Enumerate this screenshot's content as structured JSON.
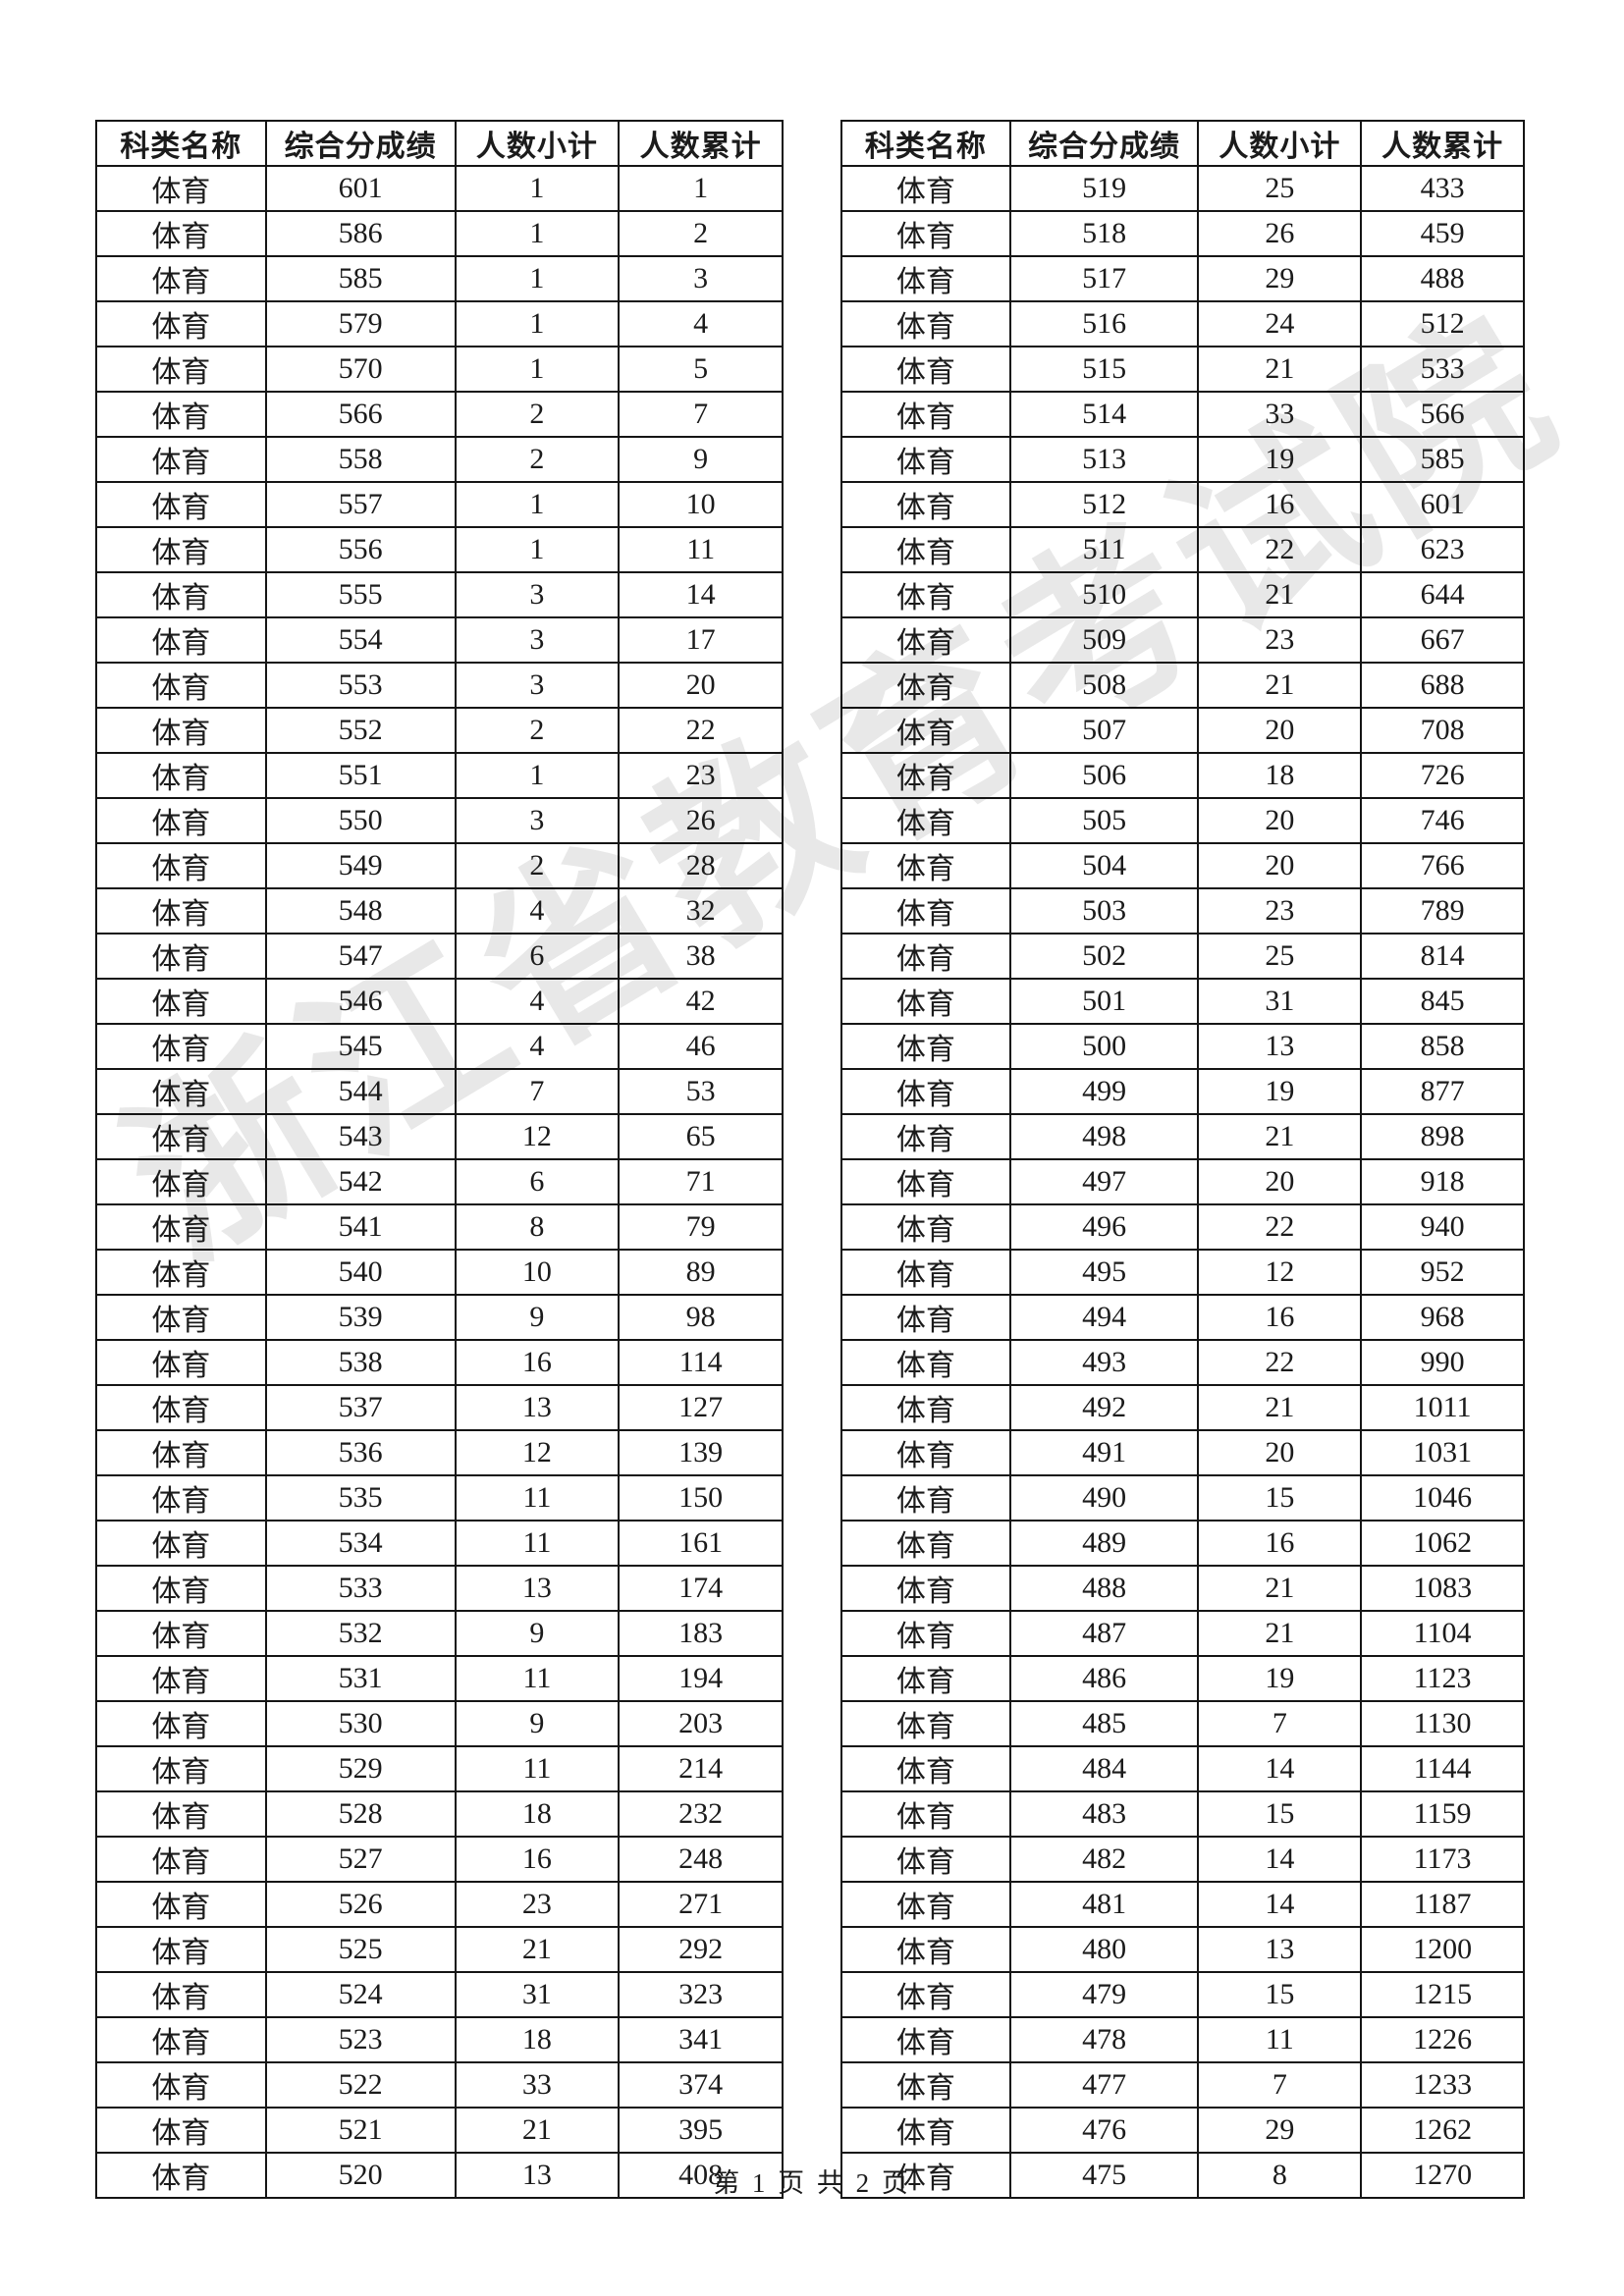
{
  "page": {
    "footer": "第 1 页 共 2 页",
    "watermark": "浙江省教育考试院"
  },
  "headers": [
    "科类名称",
    "综合分成绩",
    "人数小计",
    "人数累计"
  ],
  "tables": [
    {
      "rows": [
        {
          "category": "体育",
          "score": "601",
          "subtotal": "1",
          "cumulative": "1"
        },
        {
          "category": "体育",
          "score": "586",
          "subtotal": "1",
          "cumulative": "2"
        },
        {
          "category": "体育",
          "score": "585",
          "subtotal": "1",
          "cumulative": "3"
        },
        {
          "category": "体育",
          "score": "579",
          "subtotal": "1",
          "cumulative": "4"
        },
        {
          "category": "体育",
          "score": "570",
          "subtotal": "1",
          "cumulative": "5"
        },
        {
          "category": "体育",
          "score": "566",
          "subtotal": "2",
          "cumulative": "7"
        },
        {
          "category": "体育",
          "score": "558",
          "subtotal": "2",
          "cumulative": "9"
        },
        {
          "category": "体育",
          "score": "557",
          "subtotal": "1",
          "cumulative": "10"
        },
        {
          "category": "体育",
          "score": "556",
          "subtotal": "1",
          "cumulative": "11"
        },
        {
          "category": "体育",
          "score": "555",
          "subtotal": "3",
          "cumulative": "14"
        },
        {
          "category": "体育",
          "score": "554",
          "subtotal": "3",
          "cumulative": "17"
        },
        {
          "category": "体育",
          "score": "553",
          "subtotal": "3",
          "cumulative": "20"
        },
        {
          "category": "体育",
          "score": "552",
          "subtotal": "2",
          "cumulative": "22"
        },
        {
          "category": "体育",
          "score": "551",
          "subtotal": "1",
          "cumulative": "23"
        },
        {
          "category": "体育",
          "score": "550",
          "subtotal": "3",
          "cumulative": "26"
        },
        {
          "category": "体育",
          "score": "549",
          "subtotal": "2",
          "cumulative": "28"
        },
        {
          "category": "体育",
          "score": "548",
          "subtotal": "4",
          "cumulative": "32"
        },
        {
          "category": "体育",
          "score": "547",
          "subtotal": "6",
          "cumulative": "38"
        },
        {
          "category": "体育",
          "score": "546",
          "subtotal": "4",
          "cumulative": "42"
        },
        {
          "category": "体育",
          "score": "545",
          "subtotal": "4",
          "cumulative": "46"
        },
        {
          "category": "体育",
          "score": "544",
          "subtotal": "7",
          "cumulative": "53"
        },
        {
          "category": "体育",
          "score": "543",
          "subtotal": "12",
          "cumulative": "65"
        },
        {
          "category": "体育",
          "score": "542",
          "subtotal": "6",
          "cumulative": "71"
        },
        {
          "category": "体育",
          "score": "541",
          "subtotal": "8",
          "cumulative": "79"
        },
        {
          "category": "体育",
          "score": "540",
          "subtotal": "10",
          "cumulative": "89"
        },
        {
          "category": "体育",
          "score": "539",
          "subtotal": "9",
          "cumulative": "98"
        },
        {
          "category": "体育",
          "score": "538",
          "subtotal": "16",
          "cumulative": "114"
        },
        {
          "category": "体育",
          "score": "537",
          "subtotal": "13",
          "cumulative": "127"
        },
        {
          "category": "体育",
          "score": "536",
          "subtotal": "12",
          "cumulative": "139"
        },
        {
          "category": "体育",
          "score": "535",
          "subtotal": "11",
          "cumulative": "150"
        },
        {
          "category": "体育",
          "score": "534",
          "subtotal": "11",
          "cumulative": "161"
        },
        {
          "category": "体育",
          "score": "533",
          "subtotal": "13",
          "cumulative": "174"
        },
        {
          "category": "体育",
          "score": "532",
          "subtotal": "9",
          "cumulative": "183"
        },
        {
          "category": "体育",
          "score": "531",
          "subtotal": "11",
          "cumulative": "194"
        },
        {
          "category": "体育",
          "score": "530",
          "subtotal": "9",
          "cumulative": "203"
        },
        {
          "category": "体育",
          "score": "529",
          "subtotal": "11",
          "cumulative": "214"
        },
        {
          "category": "体育",
          "score": "528",
          "subtotal": "18",
          "cumulative": "232"
        },
        {
          "category": "体育",
          "score": "527",
          "subtotal": "16",
          "cumulative": "248"
        },
        {
          "category": "体育",
          "score": "526",
          "subtotal": "23",
          "cumulative": "271"
        },
        {
          "category": "体育",
          "score": "525",
          "subtotal": "21",
          "cumulative": "292"
        },
        {
          "category": "体育",
          "score": "524",
          "subtotal": "31",
          "cumulative": "323"
        },
        {
          "category": "体育",
          "score": "523",
          "subtotal": "18",
          "cumulative": "341"
        },
        {
          "category": "体育",
          "score": "522",
          "subtotal": "33",
          "cumulative": "374"
        },
        {
          "category": "体育",
          "score": "521",
          "subtotal": "21",
          "cumulative": "395"
        },
        {
          "category": "体育",
          "score": "520",
          "subtotal": "13",
          "cumulative": "408"
        }
      ]
    },
    {
      "rows": [
        {
          "category": "体育",
          "score": "519",
          "subtotal": "25",
          "cumulative": "433"
        },
        {
          "category": "体育",
          "score": "518",
          "subtotal": "26",
          "cumulative": "459"
        },
        {
          "category": "体育",
          "score": "517",
          "subtotal": "29",
          "cumulative": "488"
        },
        {
          "category": "体育",
          "score": "516",
          "subtotal": "24",
          "cumulative": "512"
        },
        {
          "category": "体育",
          "score": "515",
          "subtotal": "21",
          "cumulative": "533"
        },
        {
          "category": "体育",
          "score": "514",
          "subtotal": "33",
          "cumulative": "566"
        },
        {
          "category": "体育",
          "score": "513",
          "subtotal": "19",
          "cumulative": "585"
        },
        {
          "category": "体育",
          "score": "512",
          "subtotal": "16",
          "cumulative": "601"
        },
        {
          "category": "体育",
          "score": "511",
          "subtotal": "22",
          "cumulative": "623"
        },
        {
          "category": "体育",
          "score": "510",
          "subtotal": "21",
          "cumulative": "644"
        },
        {
          "category": "体育",
          "score": "509",
          "subtotal": "23",
          "cumulative": "667"
        },
        {
          "category": "体育",
          "score": "508",
          "subtotal": "21",
          "cumulative": "688"
        },
        {
          "category": "体育",
          "score": "507",
          "subtotal": "20",
          "cumulative": "708"
        },
        {
          "category": "体育",
          "score": "506",
          "subtotal": "18",
          "cumulative": "726"
        },
        {
          "category": "体育",
          "score": "505",
          "subtotal": "20",
          "cumulative": "746"
        },
        {
          "category": "体育",
          "score": "504",
          "subtotal": "20",
          "cumulative": "766"
        },
        {
          "category": "体育",
          "score": "503",
          "subtotal": "23",
          "cumulative": "789"
        },
        {
          "category": "体育",
          "score": "502",
          "subtotal": "25",
          "cumulative": "814"
        },
        {
          "category": "体育",
          "score": "501",
          "subtotal": "31",
          "cumulative": "845"
        },
        {
          "category": "体育",
          "score": "500",
          "subtotal": "13",
          "cumulative": "858"
        },
        {
          "category": "体育",
          "score": "499",
          "subtotal": "19",
          "cumulative": "877"
        },
        {
          "category": "体育",
          "score": "498",
          "subtotal": "21",
          "cumulative": "898"
        },
        {
          "category": "体育",
          "score": "497",
          "subtotal": "20",
          "cumulative": "918"
        },
        {
          "category": "体育",
          "score": "496",
          "subtotal": "22",
          "cumulative": "940"
        },
        {
          "category": "体育",
          "score": "495",
          "subtotal": "12",
          "cumulative": "952"
        },
        {
          "category": "体育",
          "score": "494",
          "subtotal": "16",
          "cumulative": "968"
        },
        {
          "category": "体育",
          "score": "493",
          "subtotal": "22",
          "cumulative": "990"
        },
        {
          "category": "体育",
          "score": "492",
          "subtotal": "21",
          "cumulative": "1011"
        },
        {
          "category": "体育",
          "score": "491",
          "subtotal": "20",
          "cumulative": "1031"
        },
        {
          "category": "体育",
          "score": "490",
          "subtotal": "15",
          "cumulative": "1046"
        },
        {
          "category": "体育",
          "score": "489",
          "subtotal": "16",
          "cumulative": "1062"
        },
        {
          "category": "体育",
          "score": "488",
          "subtotal": "21",
          "cumulative": "1083"
        },
        {
          "category": "体育",
          "score": "487",
          "subtotal": "21",
          "cumulative": "1104"
        },
        {
          "category": "体育",
          "score": "486",
          "subtotal": "19",
          "cumulative": "1123"
        },
        {
          "category": "体育",
          "score": "485",
          "subtotal": "7",
          "cumulative": "1130"
        },
        {
          "category": "体育",
          "score": "484",
          "subtotal": "14",
          "cumulative": "1144"
        },
        {
          "category": "体育",
          "score": "483",
          "subtotal": "15",
          "cumulative": "1159"
        },
        {
          "category": "体育",
          "score": "482",
          "subtotal": "14",
          "cumulative": "1173"
        },
        {
          "category": "体育",
          "score": "481",
          "subtotal": "14",
          "cumulative": "1187"
        },
        {
          "category": "体育",
          "score": "480",
          "subtotal": "13",
          "cumulative": "1200"
        },
        {
          "category": "体育",
          "score": "479",
          "subtotal": "15",
          "cumulative": "1215"
        },
        {
          "category": "体育",
          "score": "478",
          "subtotal": "11",
          "cumulative": "1226"
        },
        {
          "category": "体育",
          "score": "477",
          "subtotal": "7",
          "cumulative": "1233"
        },
        {
          "category": "体育",
          "score": "476",
          "subtotal": "29",
          "cumulative": "1262"
        },
        {
          "category": "体育",
          "score": "475",
          "subtotal": "8",
          "cumulative": "1270"
        }
      ]
    }
  ]
}
